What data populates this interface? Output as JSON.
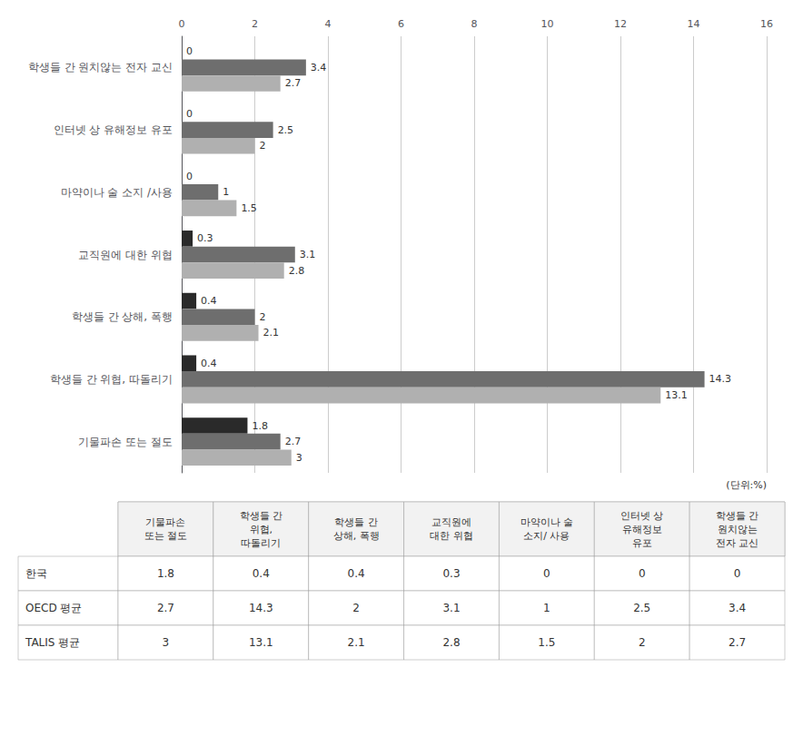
{
  "chart_data": {
    "type": "bar",
    "orientation": "horizontal",
    "categories": [
      "기물파손 또는 절도",
      "학생들 간 위협, 따돌리기",
      "학생들 간 상해, 폭행",
      "교직원에 대한 위협",
      "마약이나 술 소지 /사용",
      "인터넷 상 유해정보 유포",
      "학생들 간 원치않는 전자 교신"
    ],
    "series": [
      {
        "name": "한국",
        "color": "#2a2a2a",
        "values": [
          1.8,
          0.4,
          0.4,
          0.3,
          0,
          0,
          0
        ]
      },
      {
        "name": "OECD 평균",
        "color": "#6e6e6e",
        "values": [
          2.7,
          14.3,
          2.0,
          3.1,
          1.0,
          2.5,
          3.4
        ]
      },
      {
        "name": "TALIS 평균",
        "color": "#b0b0b0",
        "values": [
          3.0,
          13.1,
          2.1,
          2.8,
          1.5,
          2.0,
          2.7
        ]
      }
    ],
    "xlim": [
      0,
      16
    ],
    "xticks": [
      0,
      2,
      4,
      6,
      8,
      10,
      12,
      14,
      16
    ],
    "grid": true,
    "data_labels": true,
    "annotation": "(단위:%)",
    "table_columns": [
      "기물파손\n또는 절도",
      "학생들 간\n위협,\n따돌리기",
      "학생들 간\n상해, 폭행",
      "교직원에\n대한 위협",
      "마약이나 술\n소지/ 사용",
      "인터넷 상\n유해정보\n유포",
      "학생들 간\n원치않는\n전자 교신"
    ]
  }
}
